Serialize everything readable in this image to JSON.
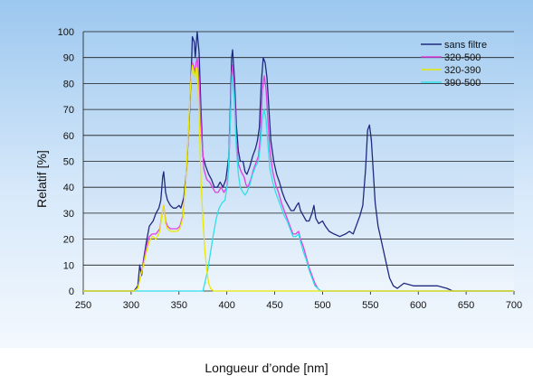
{
  "chart_data": {
    "type": "line",
    "xlabel": "Longueur d’onde [nm]",
    "ylabel": "Relatif [%]",
    "xlim": [
      250,
      700
    ],
    "ylim": [
      0,
      100
    ],
    "xticks": [
      250,
      300,
      350,
      400,
      450,
      500,
      550,
      600,
      650,
      700
    ],
    "yticks": [
      0,
      10,
      20,
      30,
      40,
      50,
      60,
      70,
      80,
      90,
      100
    ],
    "grid": "horizontal",
    "legend_position": "top-right",
    "series": [
      {
        "name": "sans filtre",
        "color": "#1f2a80",
        "points": [
          [
            250,
            0
          ],
          [
            303,
            0
          ],
          [
            307,
            2
          ],
          [
            309,
            10
          ],
          [
            311,
            6
          ],
          [
            313,
            12
          ],
          [
            316,
            19
          ],
          [
            319,
            25
          ],
          [
            323,
            27
          ],
          [
            326,
            30
          ],
          [
            329,
            32
          ],
          [
            331,
            35
          ],
          [
            333,
            44
          ],
          [
            334,
            46
          ],
          [
            336,
            38
          ],
          [
            338,
            35
          ],
          [
            341,
            33
          ],
          [
            344,
            32
          ],
          [
            347,
            32
          ],
          [
            350,
            33
          ],
          [
            352,
            32
          ],
          [
            355,
            36
          ],
          [
            358,
            47
          ],
          [
            361,
            68
          ],
          [
            363,
            86
          ],
          [
            364,
            98
          ],
          [
            366,
            96
          ],
          [
            367,
            90
          ],
          [
            368,
            95
          ],
          [
            369,
            100
          ],
          [
            371,
            92
          ],
          [
            373,
            70
          ],
          [
            375,
            52
          ],
          [
            378,
            48
          ],
          [
            381,
            45
          ],
          [
            384,
            43
          ],
          [
            387,
            40
          ],
          [
            390,
            40
          ],
          [
            393,
            42
          ],
          [
            396,
            40
          ],
          [
            399,
            43
          ],
          [
            402,
            52
          ],
          [
            404,
            75
          ],
          [
            405,
            90
          ],
          [
            406,
            93
          ],
          [
            408,
            82
          ],
          [
            410,
            64
          ],
          [
            412,
            54
          ],
          [
            414,
            50
          ],
          [
            417,
            50
          ],
          [
            419,
            46
          ],
          [
            421,
            45
          ],
          [
            424,
            48
          ],
          [
            427,
            52
          ],
          [
            430,
            55
          ],
          [
            432,
            58
          ],
          [
            434,
            63
          ],
          [
            436,
            80
          ],
          [
            438,
            90
          ],
          [
            440,
            88
          ],
          [
            442,
            82
          ],
          [
            444,
            70
          ],
          [
            446,
            58
          ],
          [
            449,
            50
          ],
          [
            452,
            45
          ],
          [
            455,
            42
          ],
          [
            458,
            38
          ],
          [
            461,
            35
          ],
          [
            464,
            33
          ],
          [
            467,
            31
          ],
          [
            470,
            31
          ],
          [
            473,
            33
          ],
          [
            475,
            34
          ],
          [
            477,
            31
          ],
          [
            480,
            29
          ],
          [
            483,
            27
          ],
          [
            486,
            27
          ],
          [
            489,
            30
          ],
          [
            491,
            33
          ],
          [
            493,
            28
          ],
          [
            496,
            26
          ],
          [
            500,
            27
          ],
          [
            503,
            25
          ],
          [
            507,
            23
          ],
          [
            512,
            22
          ],
          [
            518,
            21
          ],
          [
            524,
            22
          ],
          [
            528,
            23
          ],
          [
            532,
            22
          ],
          [
            535,
            25
          ],
          [
            539,
            29
          ],
          [
            542,
            33
          ],
          [
            545,
            47
          ],
          [
            547,
            62
          ],
          [
            549,
            64
          ],
          [
            551,
            58
          ],
          [
            553,
            46
          ],
          [
            555,
            34
          ],
          [
            558,
            25
          ],
          [
            561,
            20
          ],
          [
            564,
            15
          ],
          [
            567,
            10
          ],
          [
            570,
            5
          ],
          [
            574,
            2
          ],
          [
            578,
            1
          ],
          [
            585,
            3
          ],
          [
            595,
            2
          ],
          [
            610,
            2
          ],
          [
            620,
            2
          ],
          [
            630,
            1
          ],
          [
            636,
            0
          ],
          [
            700,
            0
          ]
        ]
      },
      {
        "name": "320-500",
        "color": "#e040e0",
        "points": [
          [
            250,
            0
          ],
          [
            303,
            0
          ],
          [
            307,
            1
          ],
          [
            310,
            6
          ],
          [
            313,
            11
          ],
          [
            316,
            17
          ],
          [
            319,
            21
          ],
          [
            322,
            22
          ],
          [
            326,
            22
          ],
          [
            330,
            24
          ],
          [
            332,
            29
          ],
          [
            334,
            33
          ],
          [
            336,
            27
          ],
          [
            338,
            25
          ],
          [
            341,
            24
          ],
          [
            345,
            24
          ],
          [
            348,
            24
          ],
          [
            351,
            25
          ],
          [
            354,
            29
          ],
          [
            357,
            42
          ],
          [
            360,
            62
          ],
          [
            362,
            80
          ],
          [
            364,
            88
          ],
          [
            366,
            86
          ],
          [
            367,
            84
          ],
          [
            368,
            88
          ],
          [
            369,
            90
          ],
          [
            371,
            82
          ],
          [
            373,
            64
          ],
          [
            376,
            47
          ],
          [
            379,
            43
          ],
          [
            382,
            42
          ],
          [
            385,
            40
          ],
          [
            388,
            38
          ],
          [
            391,
            38
          ],
          [
            394,
            40
          ],
          [
            397,
            38
          ],
          [
            400,
            40
          ],
          [
            402,
            48
          ],
          [
            404,
            70
          ],
          [
            405,
            84
          ],
          [
            406,
            87
          ],
          [
            408,
            76
          ],
          [
            410,
            58
          ],
          [
            412,
            49
          ],
          [
            415,
            46
          ],
          [
            418,
            44
          ],
          [
            420,
            41
          ],
          [
            422,
            40
          ],
          [
            425,
            43
          ],
          [
            428,
            47
          ],
          [
            431,
            50
          ],
          [
            433,
            52
          ],
          [
            435,
            60
          ],
          [
            437,
            77
          ],
          [
            439,
            83
          ],
          [
            441,
            78
          ],
          [
            443,
            65
          ],
          [
            445,
            54
          ],
          [
            448,
            46
          ],
          [
            451,
            41
          ],
          [
            454,
            38
          ],
          [
            457,
            34
          ],
          [
            460,
            31
          ],
          [
            463,
            28
          ],
          [
            466,
            25
          ],
          [
            469,
            22
          ],
          [
            472,
            22
          ],
          [
            475,
            23
          ],
          [
            477,
            20
          ],
          [
            480,
            17
          ],
          [
            483,
            13
          ],
          [
            486,
            9
          ],
          [
            489,
            6
          ],
          [
            492,
            3
          ],
          [
            495,
            1
          ],
          [
            498,
            0
          ],
          [
            700,
            0
          ]
        ]
      },
      {
        "name": "320-390",
        "color": "#e8e800",
        "points": [
          [
            250,
            0
          ],
          [
            303,
            0
          ],
          [
            307,
            1
          ],
          [
            310,
            6
          ],
          [
            313,
            10
          ],
          [
            316,
            15
          ],
          [
            319,
            19
          ],
          [
            322,
            21
          ],
          [
            326,
            20
          ],
          [
            330,
            23
          ],
          [
            332,
            29
          ],
          [
            334,
            33
          ],
          [
            336,
            26
          ],
          [
            338,
            24
          ],
          [
            341,
            23
          ],
          [
            345,
            23
          ],
          [
            348,
            23
          ],
          [
            351,
            24
          ],
          [
            354,
            28
          ],
          [
            357,
            42
          ],
          [
            360,
            63
          ],
          [
            362,
            79
          ],
          [
            364,
            87
          ],
          [
            366,
            84
          ],
          [
            367,
            82
          ],
          [
            368,
            86
          ],
          [
            369,
            86
          ],
          [
            370,
            78
          ],
          [
            371,
            68
          ],
          [
            372,
            55
          ],
          [
            373,
            42
          ],
          [
            375,
            28
          ],
          [
            377,
            16
          ],
          [
            379,
            8
          ],
          [
            381,
            3
          ],
          [
            383,
            1
          ],
          [
            386,
            0
          ],
          [
            700,
            0
          ]
        ]
      },
      {
        "name": "390-500",
        "color": "#30e0e8",
        "points": [
          [
            250,
            0
          ],
          [
            375,
            0
          ],
          [
            377,
            3
          ],
          [
            380,
            8
          ],
          [
            383,
            15
          ],
          [
            386,
            22
          ],
          [
            389,
            28
          ],
          [
            392,
            32
          ],
          [
            395,
            34
          ],
          [
            398,
            35
          ],
          [
            401,
            42
          ],
          [
            403,
            60
          ],
          [
            405,
            80
          ],
          [
            406,
            83
          ],
          [
            408,
            72
          ],
          [
            410,
            55
          ],
          [
            412,
            45
          ],
          [
            414,
            40
          ],
          [
            417,
            38
          ],
          [
            419,
            37
          ],
          [
            421,
            38
          ],
          [
            424,
            41
          ],
          [
            427,
            45
          ],
          [
            430,
            48
          ],
          [
            433,
            50
          ],
          [
            435,
            56
          ],
          [
            437,
            66
          ],
          [
            439,
            70
          ],
          [
            441,
            66
          ],
          [
            443,
            56
          ],
          [
            445,
            47
          ],
          [
            448,
            42
          ],
          [
            451,
            38
          ],
          [
            454,
            35
          ],
          [
            457,
            32
          ],
          [
            460,
            29
          ],
          [
            463,
            27
          ],
          [
            466,
            24
          ],
          [
            469,
            21
          ],
          [
            472,
            21
          ],
          [
            475,
            22
          ],
          [
            477,
            19
          ],
          [
            480,
            15
          ],
          [
            483,
            12
          ],
          [
            486,
            8
          ],
          [
            489,
            5
          ],
          [
            492,
            2
          ],
          [
            495,
            1
          ],
          [
            498,
            0
          ],
          [
            700,
            0
          ]
        ]
      }
    ]
  }
}
